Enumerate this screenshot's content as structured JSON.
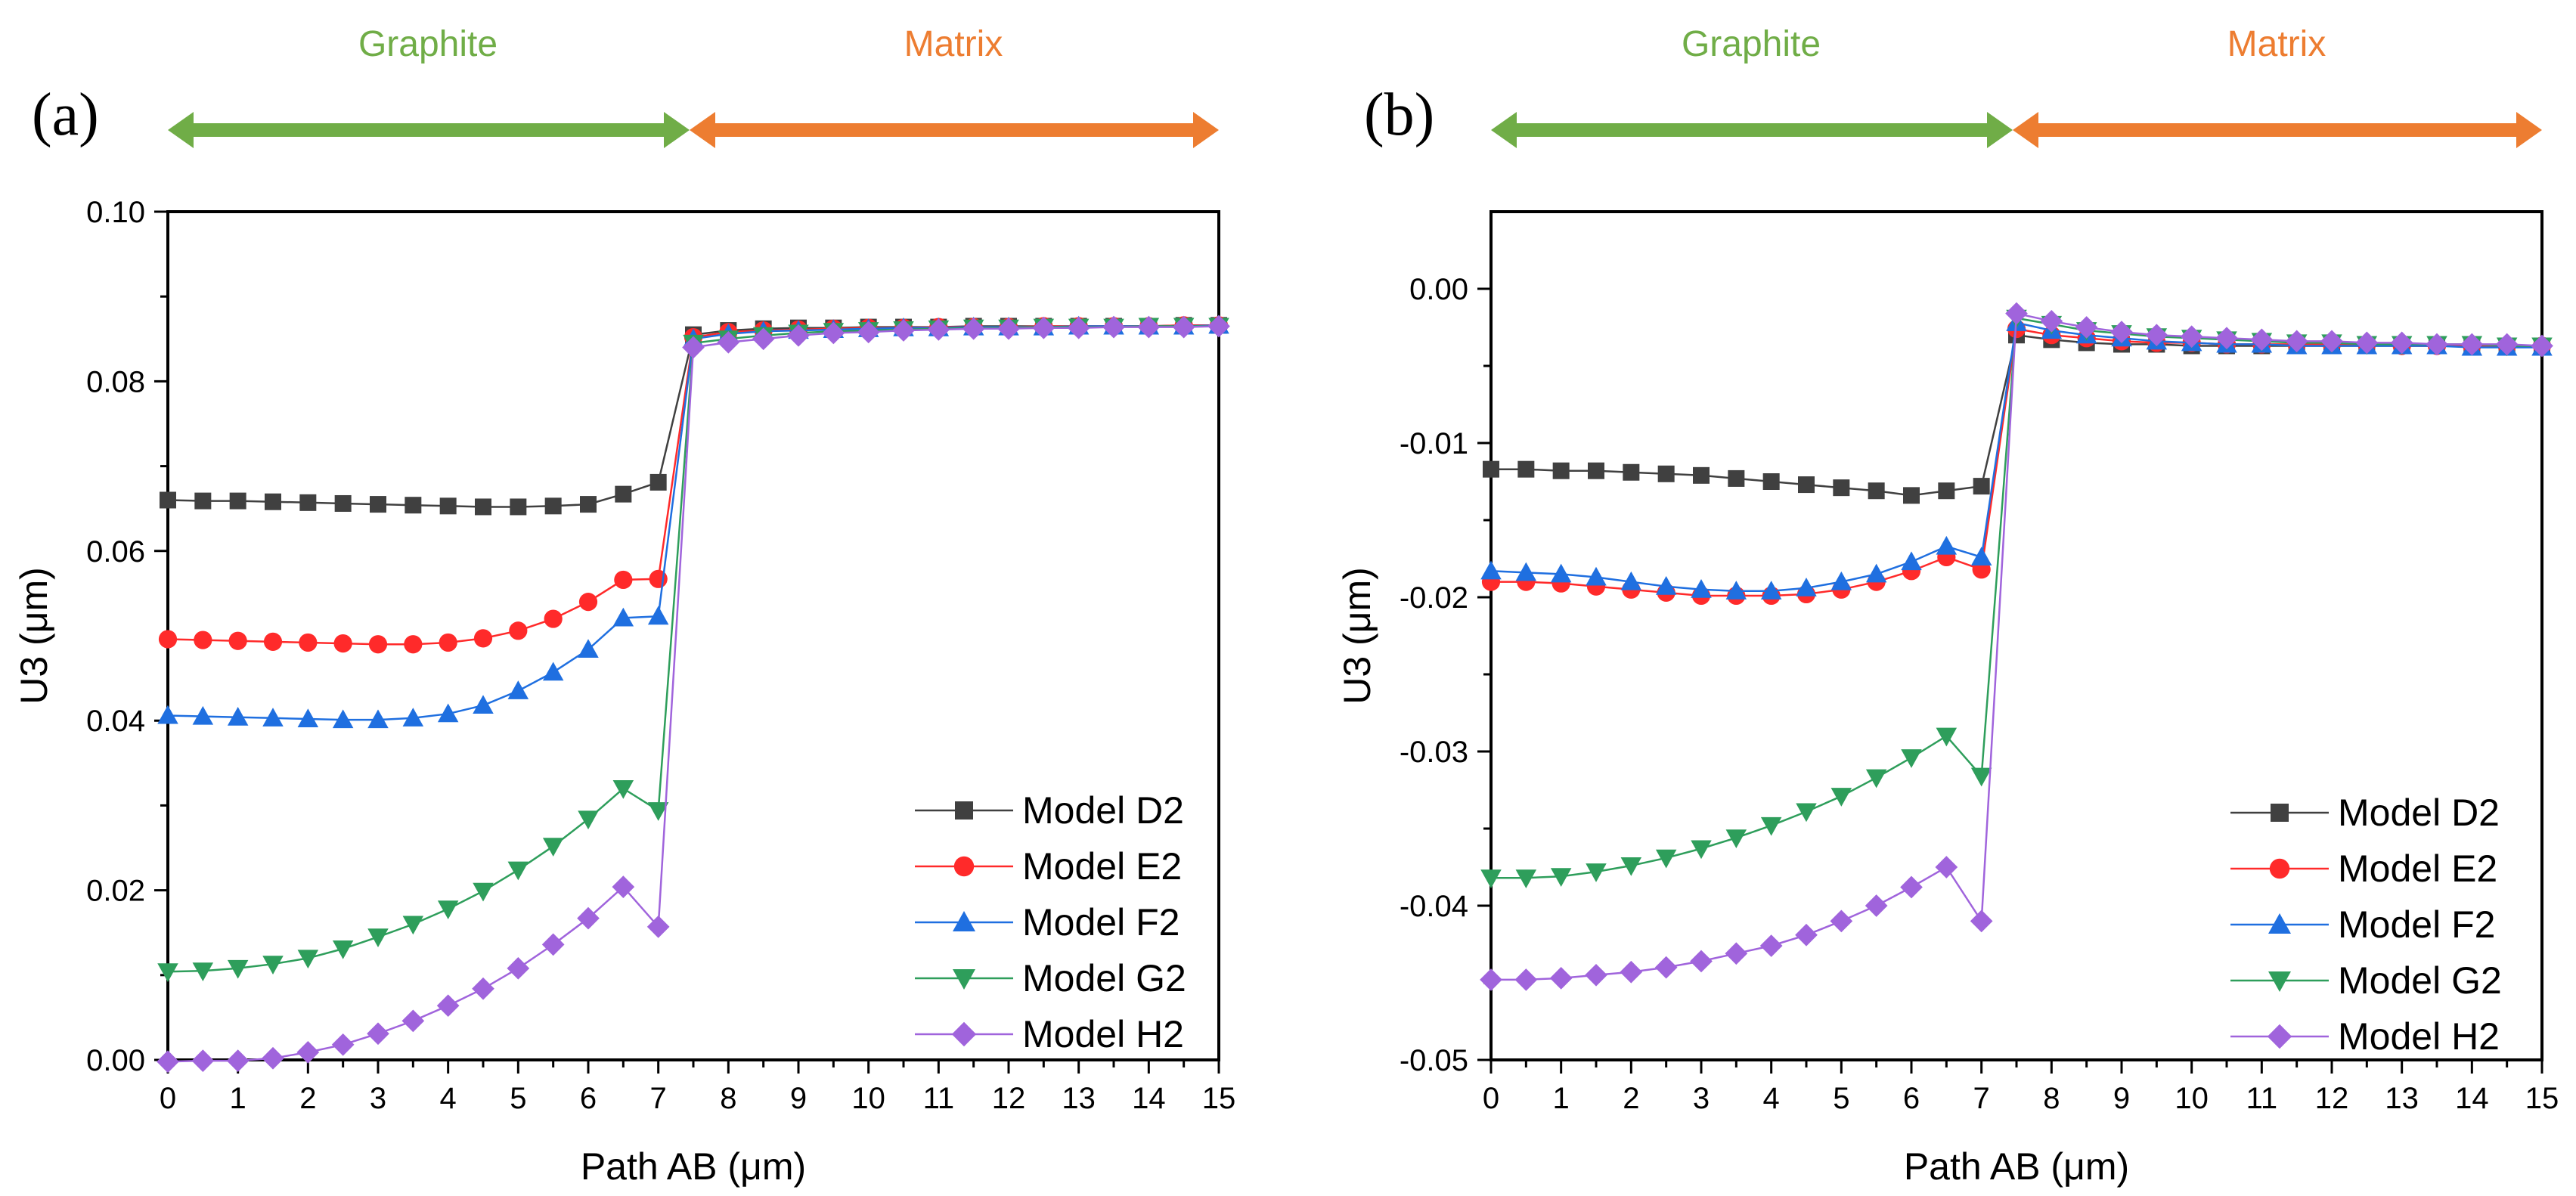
{
  "figure": {
    "region_labels": {
      "graphite": "Graphite",
      "matrix": "Matrix"
    },
    "colors": {
      "graphite": "#70ad47",
      "matrix": "#ed7d31"
    }
  },
  "chart_data": [
    {
      "type": "line",
      "panel_label": "(a)",
      "xlabel": "Path AB (μm)",
      "ylabel": "U3 (μm)",
      "xlim": [
        0,
        15
      ],
      "ylim": [
        0,
        0.1
      ],
      "xticks": [
        0,
        1,
        2,
        3,
        4,
        5,
        6,
        7,
        8,
        9,
        10,
        11,
        12,
        13,
        14,
        15
      ],
      "yticks": [
        0.0,
        0.02,
        0.04,
        0.06,
        0.08,
        0.1
      ],
      "ytick_labels": [
        "0.00",
        "0.02",
        "0.04",
        "0.06",
        "0.08",
        "0.10"
      ],
      "legend_position": "lower-right",
      "x": [
        0,
        0.5,
        1,
        1.5,
        2,
        2.5,
        3,
        3.5,
        4,
        4.5,
        5,
        5.5,
        6,
        6.5,
        7,
        7.5,
        8,
        8.5,
        9,
        9.5,
        10,
        10.5,
        11,
        11.5,
        12,
        12.5,
        13,
        13.5,
        14,
        14.5,
        15
      ],
      "series": [
        {
          "name": "Model D2",
          "marker": "square",
          "color": "#404040",
          "values": [
            0.066,
            0.0659,
            0.0659,
            0.0658,
            0.0657,
            0.0656,
            0.0655,
            0.0654,
            0.0653,
            0.0652,
            0.0652,
            0.0653,
            0.0655,
            0.0667,
            0.0681,
            0.0855,
            0.086,
            0.0862,
            0.0863,
            0.0863,
            0.0864,
            0.0864,
            0.0864,
            0.0865,
            0.0865,
            0.0865,
            0.0865,
            0.0865,
            0.0865,
            0.0866,
            0.0866
          ]
        },
        {
          "name": "Model E2",
          "marker": "circle",
          "color": "#ff2a2a",
          "values": [
            0.0496,
            0.0495,
            0.0494,
            0.0493,
            0.0492,
            0.0491,
            0.049,
            0.049,
            0.0492,
            0.0497,
            0.0506,
            0.052,
            0.054,
            0.0566,
            0.0567,
            0.0852,
            0.0858,
            0.086,
            0.0861,
            0.0862,
            0.0863,
            0.0863,
            0.0864,
            0.0864,
            0.0864,
            0.0865,
            0.0865,
            0.0865,
            0.0865,
            0.0866,
            0.0866
          ]
        },
        {
          "name": "Model F2",
          "marker": "triangle-up",
          "color": "#1f6fe0",
          "values": [
            0.0406,
            0.0405,
            0.0404,
            0.0403,
            0.0402,
            0.0401,
            0.0401,
            0.0403,
            0.0408,
            0.0418,
            0.0435,
            0.0457,
            0.0484,
            0.0521,
            0.0523,
            0.085,
            0.0856,
            0.0859,
            0.086,
            0.0861,
            0.0862,
            0.0863,
            0.0863,
            0.0864,
            0.0864,
            0.0864,
            0.0865,
            0.0865,
            0.0865,
            0.0865,
            0.0866
          ]
        },
        {
          "name": "Model G2",
          "marker": "triangle-down",
          "color": "#2e9e5b",
          "values": [
            0.0104,
            0.0105,
            0.0108,
            0.0113,
            0.012,
            0.0131,
            0.0145,
            0.016,
            0.0178,
            0.0199,
            0.0224,
            0.0252,
            0.0284,
            0.032,
            0.0294,
            0.0845,
            0.085,
            0.0854,
            0.0857,
            0.0859,
            0.086,
            0.0861,
            0.0862,
            0.0863,
            0.0863,
            0.0864,
            0.0864,
            0.0864,
            0.0865,
            0.0865,
            0.0865
          ]
        },
        {
          "name": "Model H2",
          "marker": "diamond",
          "color": "#a064dc",
          "values": [
            -0.0002,
            -0.0001,
            -0.0001,
            0.0002,
            0.0009,
            0.0018,
            0.0031,
            0.0046,
            0.0064,
            0.0084,
            0.0108,
            0.0136,
            0.0167,
            0.0204,
            0.0157,
            0.084,
            0.0846,
            0.085,
            0.0854,
            0.0857,
            0.0858,
            0.086,
            0.0861,
            0.0862,
            0.0862,
            0.0863,
            0.0863,
            0.0864,
            0.0864,
            0.0864,
            0.0865
          ]
        }
      ]
    },
    {
      "type": "line",
      "panel_label": "(b)",
      "xlabel": "Path AB (μm)",
      "ylabel": "U3 (μm)",
      "xlim": [
        0,
        15
      ],
      "ylim": [
        -0.05,
        0.005
      ],
      "xticks": [
        0,
        1,
        2,
        3,
        4,
        5,
        6,
        7,
        8,
        9,
        10,
        11,
        12,
        13,
        14,
        15
      ],
      "yticks": [
        -0.05,
        -0.04,
        -0.03,
        -0.02,
        -0.01,
        0.0
      ],
      "ytick_labels": [
        "-0.05",
        "-0.04",
        "-0.03",
        "-0.02",
        "-0.01",
        "0.00"
      ],
      "legend_position": "lower-right",
      "x": [
        0,
        0.5,
        1,
        1.5,
        2,
        2.5,
        3,
        3.5,
        4,
        4.5,
        5,
        5.5,
        6,
        6.5,
        7,
        7.5,
        8,
        8.5,
        9,
        9.5,
        10,
        10.5,
        11,
        11.5,
        12,
        12.5,
        13,
        13.5,
        14,
        14.5,
        15
      ],
      "series": [
        {
          "name": "Model D2",
          "marker": "square",
          "color": "#404040",
          "values": [
            -0.0117,
            -0.0117,
            -0.0118,
            -0.0118,
            -0.0119,
            -0.012,
            -0.0121,
            -0.0123,
            -0.0125,
            -0.0127,
            -0.0129,
            -0.0131,
            -0.0134,
            -0.0131,
            -0.0128,
            -0.003,
            -0.0033,
            -0.0035,
            -0.0036,
            -0.0036,
            -0.0037,
            -0.0037,
            -0.0037,
            -0.0037,
            -0.0037,
            -0.0037,
            -0.0037,
            -0.0037,
            -0.0037,
            -0.0037,
            -0.0037
          ]
        },
        {
          "name": "Model E2",
          "marker": "circle",
          "color": "#ff2a2a",
          "values": [
            -0.019,
            -0.019,
            -0.0191,
            -0.0193,
            -0.0195,
            -0.0197,
            -0.0199,
            -0.0199,
            -0.0199,
            -0.0198,
            -0.0195,
            -0.019,
            -0.0183,
            -0.0174,
            -0.0182,
            -0.0026,
            -0.003,
            -0.0032,
            -0.0034,
            -0.0035,
            -0.0035,
            -0.0036,
            -0.0036,
            -0.0036,
            -0.0036,
            -0.0036,
            -0.0037,
            -0.0037,
            -0.0037,
            -0.0037,
            -0.0037
          ]
        },
        {
          "name": "Model F2",
          "marker": "triangle-up",
          "color": "#1f6fe0",
          "values": [
            -0.0183,
            -0.0184,
            -0.0185,
            -0.0187,
            -0.019,
            -0.0193,
            -0.0195,
            -0.0196,
            -0.0196,
            -0.0194,
            -0.019,
            -0.0185,
            -0.0177,
            -0.0167,
            -0.0174,
            -0.0022,
            -0.0027,
            -0.003,
            -0.0032,
            -0.0034,
            -0.0035,
            -0.0036,
            -0.0036,
            -0.0037,
            -0.0037,
            -0.0037,
            -0.0037,
            -0.0037,
            -0.0038,
            -0.0038,
            -0.0038
          ]
        },
        {
          "name": "Model G2",
          "marker": "triangle-down",
          "color": "#2e9e5b",
          "values": [
            -0.0382,
            -0.0382,
            -0.0381,
            -0.0378,
            -0.0374,
            -0.0369,
            -0.0363,
            -0.0356,
            -0.0348,
            -0.0339,
            -0.0329,
            -0.0317,
            -0.0304,
            -0.029,
            -0.0316,
            -0.0019,
            -0.0023,
            -0.0027,
            -0.0029,
            -0.0031,
            -0.0032,
            -0.0033,
            -0.0034,
            -0.0035,
            -0.0035,
            -0.0036,
            -0.0036,
            -0.0036,
            -0.0036,
            -0.0037,
            -0.0037
          ]
        },
        {
          "name": "Model H2",
          "marker": "diamond",
          "color": "#a064dc",
          "values": [
            -0.0448,
            -0.0448,
            -0.0447,
            -0.0445,
            -0.0443,
            -0.044,
            -0.0436,
            -0.0431,
            -0.0426,
            -0.0419,
            -0.041,
            -0.04,
            -0.0388,
            -0.0375,
            -0.041,
            -0.0016,
            -0.0021,
            -0.0025,
            -0.0028,
            -0.003,
            -0.0031,
            -0.0032,
            -0.0033,
            -0.0034,
            -0.0034,
            -0.0035,
            -0.0035,
            -0.0036,
            -0.0036,
            -0.0036,
            -0.0037
          ]
        }
      ]
    }
  ]
}
